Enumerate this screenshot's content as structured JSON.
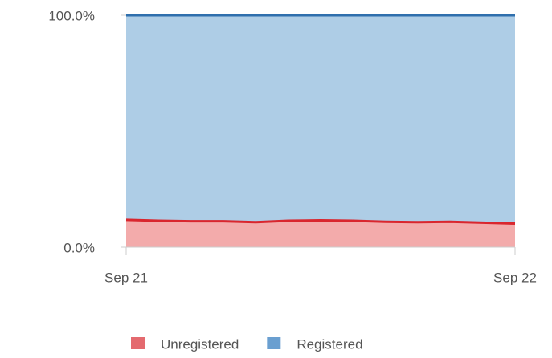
{
  "chart_data": {
    "type": "stacked_area",
    "categories": [
      "Sep 21",
      null,
      null,
      null,
      null,
      null,
      null,
      null,
      null,
      null,
      null,
      null,
      "Sep 22"
    ],
    "series": [
      {
        "name": "Unregistered",
        "color": "#d9262e",
        "fill": "#f3abab",
        "values": [
          11.8,
          11.4,
          11.2,
          11.2,
          10.8,
          11.4,
          11.6,
          11.4,
          11.0,
          10.8,
          11.0,
          10.6,
          10.2
        ]
      },
      {
        "name": "Registered",
        "color": "#2f6fad",
        "fill": "#aecde6",
        "values": [
          88.2,
          88.6,
          88.8,
          88.8,
          89.2,
          88.6,
          88.4,
          88.6,
          89.0,
          89.2,
          89.0,
          89.4,
          89.8
        ]
      }
    ],
    "ylim": [
      0,
      100
    ],
    "yticks": [
      {
        "value": 0,
        "label": "0.0%"
      },
      {
        "value": 100,
        "label": "100.0%"
      }
    ],
    "legend": "bottom"
  }
}
